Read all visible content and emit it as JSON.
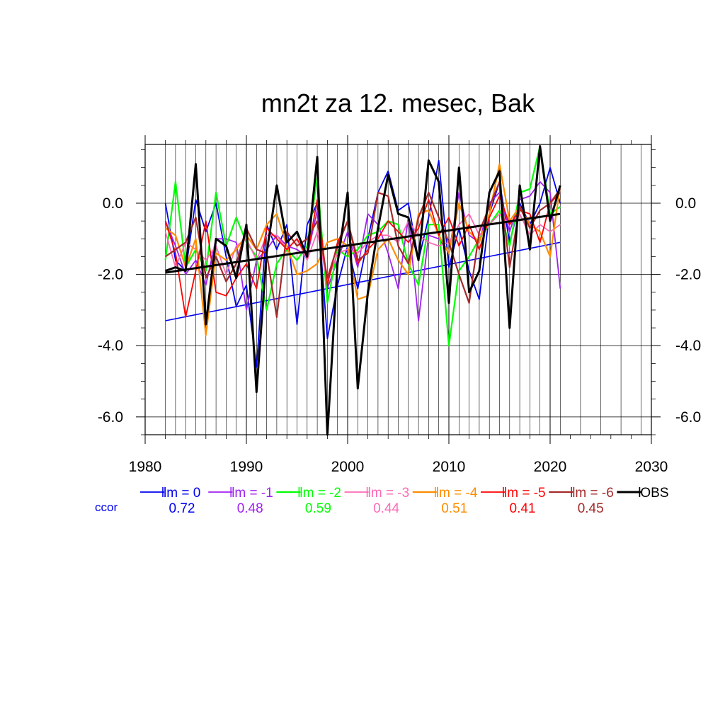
{
  "chart_data": {
    "type": "line",
    "title": "mn2t za 12. mesec, Bak",
    "xlabel": "",
    "ylabel": "",
    "xlim": [
      1980,
      2030
    ],
    "ylim": [
      -6.5,
      1.65
    ],
    "x_ticks": [
      1980,
      1990,
      2000,
      2010,
      2020,
      2030
    ],
    "y_ticks": [
      0.0,
      -2.0,
      -4.0,
      -6.0
    ],
    "y_tick_labels": [
      "0.0",
      "-2.0",
      "-4.0",
      "-6.0"
    ],
    "grid": true,
    "legend_position": "bottom",
    "corr_label": "ccor",
    "x": [
      1982,
      1983,
      1984,
      1985,
      1986,
      1987,
      1988,
      1989,
      1990,
      1991,
      1992,
      1993,
      1994,
      1995,
      1996,
      1997,
      1998,
      1999,
      2000,
      2001,
      2002,
      2003,
      2004,
      2005,
      2006,
      2007,
      2008,
      2009,
      2010,
      2011,
      2012,
      2013,
      2014,
      2015,
      2016,
      2017,
      2018,
      2019,
      2020,
      2021
    ],
    "series": [
      {
        "name": "lm = 0",
        "ccor": "0.72",
        "color": "#0000ee",
        "width": 1.8,
        "values": [
          0.0,
          -1.6,
          -1.9,
          0.1,
          -0.8,
          0.0,
          -1.5,
          -2.9,
          -2.3,
          -4.6,
          -0.6,
          -1.3,
          -0.6,
          -3.4,
          -0.6,
          0.0,
          -3.8,
          -2.3,
          -1.2,
          -2.4,
          -1.0,
          0.3,
          0.9,
          -0.2,
          0.0,
          -1.6,
          -0.4,
          1.2,
          -1.8,
          -0.7,
          -1.9,
          -2.7,
          -0.3,
          0.6,
          -1.1,
          0.0,
          -0.6,
          0.0,
          1.0,
          0.0
        ],
        "trend": [
          -3.3,
          -1.1
        ]
      },
      {
        "name": "lm = -1",
        "ccor": "0.48",
        "color": "#a020f0",
        "width": 1.8,
        "values": [
          -0.5,
          -1.2,
          -2.0,
          -1.6,
          -2.3,
          -1.0,
          -1.0,
          -1.1,
          -3.0,
          -1.6,
          -1.3,
          -0.9,
          -1.2,
          -1.3,
          -1.5,
          -0.2,
          -2.4,
          -1.6,
          -0.8,
          -1.8,
          -0.3,
          -0.6,
          -1.4,
          -2.4,
          -0.4,
          -3.3,
          -0.9,
          -1.0,
          -1.4,
          0.3,
          -0.9,
          -1.1,
          0.0,
          0.3,
          -0.8,
          0.1,
          0.2,
          0.6,
          0.3,
          -2.4
        ]
      },
      {
        "name": "lm = -2",
        "ccor": "0.59",
        "color": "#00ff00",
        "width": 2.2,
        "values": [
          -1.6,
          0.6,
          -1.8,
          -1.3,
          -1.9,
          0.3,
          -1.2,
          -0.4,
          -1.1,
          -1.5,
          -3.0,
          -1.7,
          -1.3,
          -1.6,
          -1.2,
          0.7,
          -2.8,
          -1.3,
          -1.5,
          -1.3,
          -0.9,
          -0.8,
          -0.5,
          -0.6,
          -1.7,
          -2.3,
          -0.6,
          -0.6,
          -4.0,
          -1.9,
          -1.5,
          -1.0,
          -0.6,
          -0.2,
          -1.2,
          0.3,
          0.4,
          1.6,
          -0.3,
          -0.1
        ]
      },
      {
        "name": "lm = -3",
        "ccor": "0.44",
        "color": "#ff69b4",
        "width": 1.8,
        "values": [
          -0.8,
          -1.8,
          -1.1,
          -1.3,
          -1.6,
          -1.2,
          -2.0,
          -1.2,
          -1.0,
          -1.6,
          -0.9,
          -0.9,
          -1.3,
          -1.0,
          -1.6,
          -0.8,
          -2.2,
          -1.4,
          -1.3,
          -1.4,
          -1.1,
          -0.9,
          -0.9,
          -1.1,
          -0.5,
          -0.9,
          -1.1,
          -1.2,
          -1.1,
          -0.6,
          -0.3,
          -0.9,
          -0.6,
          -0.3,
          -0.6,
          -0.3,
          -0.9,
          -0.6,
          -0.8,
          -0.6
        ]
      },
      {
        "name": "lm = -4",
        "ccor": "0.51",
        "color": "#ff8c00",
        "width": 2.2,
        "values": [
          -0.7,
          -0.9,
          -1.8,
          -1.0,
          -3.7,
          -1.4,
          -1.6,
          -1.3,
          -0.9,
          -1.3,
          -0.6,
          -0.3,
          -1.2,
          -2.0,
          -1.9,
          -1.7,
          -1.1,
          -1.0,
          -1.2,
          -2.7,
          -2.6,
          -1.3,
          -1.0,
          -1.6,
          -2.0,
          -0.3,
          -0.2,
          -0.9,
          -1.4,
          0.0,
          -0.8,
          -1.1,
          -0.3,
          1.1,
          -0.5,
          -0.1,
          -0.6,
          -0.8,
          -1.5,
          0.5
        ]
      },
      {
        "name": "lm = -5",
        "ccor": "0.41",
        "color": "#ff0000",
        "width": 1.8,
        "values": [
          -0.5,
          -1.4,
          -3.2,
          -1.9,
          -0.5,
          -2.5,
          -2.6,
          -2.1,
          -1.7,
          -2.4,
          -0.7,
          -1.0,
          -1.3,
          -1.0,
          -1.5,
          0.1,
          -2.3,
          -1.1,
          -0.5,
          -1.7,
          -1.3,
          -1.0,
          -0.5,
          -0.8,
          -1.1,
          -0.7,
          0.1,
          -0.9,
          -0.4,
          -1.2,
          -0.6,
          -1.3,
          -0.4,
          0.2,
          -0.6,
          -0.2,
          -0.3,
          -1.1,
          0.0,
          0.3
        ]
      },
      {
        "name": "lm = -6",
        "ccor": "0.45",
        "color": "#a52a2a",
        "width": 2.2,
        "values": [
          -1.5,
          -1.3,
          -1.1,
          -0.4,
          -2.1,
          -1.5,
          -2.2,
          -1.7,
          -0.7,
          -1.3,
          -1.4,
          -3.2,
          -0.8,
          -1.2,
          -1.0,
          -0.5,
          -2.1,
          -1.2,
          -0.5,
          -1.6,
          -1.4,
          0.3,
          0.2,
          -1.2,
          -1.7,
          -0.4,
          0.3,
          -0.4,
          -1.1,
          -2.0,
          -2.8,
          -0.8,
          -0.1,
          0.6,
          -1.8,
          -0.1,
          -0.7,
          -0.2,
          0.0,
          0.4
        ]
      },
      {
        "name": "OBS",
        "ccor": "",
        "color": "#000000",
        "width": 3.0,
        "values": [
          -1.9,
          -1.8,
          -1.9,
          1.1,
          -3.4,
          -1.0,
          -1.2,
          -2.1,
          -0.6,
          -5.3,
          -1.4,
          0.5,
          -1.1,
          -0.8,
          -1.5,
          1.3,
          -6.5,
          -1.7,
          0.3,
          -5.2,
          -2.5,
          -0.7,
          0.8,
          -0.3,
          -0.4,
          -1.6,
          1.2,
          0.6,
          -2.8,
          1.0,
          -2.5,
          -1.9,
          0.3,
          0.9,
          -3.5,
          0.5,
          -1.3,
          1.6,
          -0.5,
          0.5
        ],
        "trend": [
          -1.95,
          -0.3
        ]
      }
    ]
  }
}
